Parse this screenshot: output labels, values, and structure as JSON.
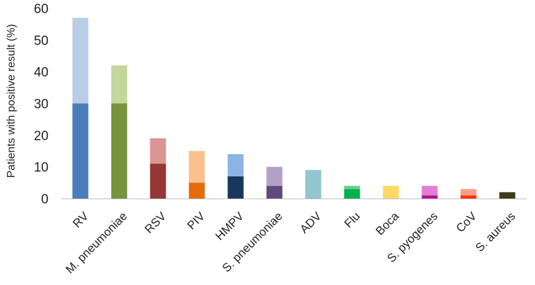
{
  "chart_data": {
    "type": "bar",
    "stacked": true,
    "title": "",
    "xlabel": "",
    "ylabel": "Patients with positive result (%)",
    "ylim": [
      0,
      60
    ],
    "yticks": [
      0,
      10,
      20,
      30,
      40,
      50,
      60
    ],
    "grid": false,
    "legend": "none",
    "categories": [
      "RV",
      "M. pneumoniae",
      "RSV",
      "PIV",
      "HMPV",
      "S. pneumoniae",
      "ADV",
      "Flu",
      "Boca",
      "S. pyogenes",
      "CoV",
      "S. aureus"
    ],
    "series": [
      {
        "values": [
          30,
          30,
          11,
          5,
          7,
          4,
          0,
          3,
          0,
          1,
          1,
          2
        ],
        "colors": [
          "#4a7ebb",
          "#77933c",
          "#953735",
          "#e46c0a",
          "#17375e",
          "#604a7b",
          "#31859c",
          "#00b050",
          "#f0c000",
          "#b3139a",
          "#ff3300",
          "#403a1c"
        ]
      },
      {
        "values": [
          27,
          12,
          8,
          10,
          7,
          6,
          9,
          1,
          4,
          3,
          2,
          0
        ],
        "colors": [
          "#b9cde5",
          "#c3d69b",
          "#d99694",
          "#fac090",
          "#8db3e2",
          "#b3a2c7",
          "#93c6cf",
          "#66d08f",
          "#ffd966",
          "#e47ed4",
          "#f79f8f",
          "#8d8a6b"
        ]
      }
    ]
  }
}
